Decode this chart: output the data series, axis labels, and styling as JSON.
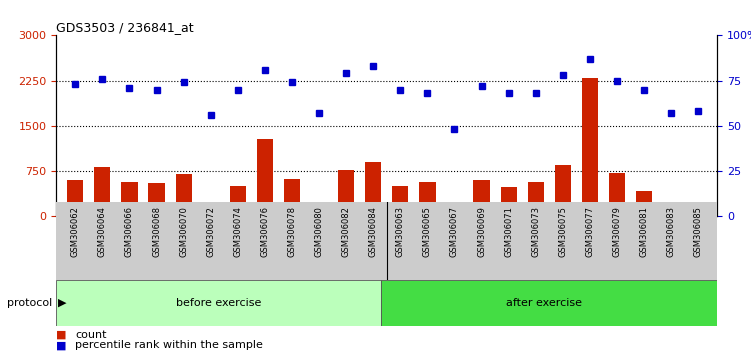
{
  "title": "GDS3503 / 236841_at",
  "samples": [
    "GSM306062",
    "GSM306064",
    "GSM306066",
    "GSM306068",
    "GSM306070",
    "GSM306072",
    "GSM306074",
    "GSM306076",
    "GSM306078",
    "GSM306080",
    "GSM306082",
    "GSM306084",
    "GSM306063",
    "GSM306065",
    "GSM306067",
    "GSM306069",
    "GSM306071",
    "GSM306073",
    "GSM306075",
    "GSM306077",
    "GSM306079",
    "GSM306081",
    "GSM306083",
    "GSM306085"
  ],
  "counts": [
    600,
    820,
    560,
    540,
    690,
    200,
    490,
    1280,
    620,
    210,
    760,
    900,
    490,
    560,
    80,
    600,
    480,
    560,
    840,
    2300,
    720,
    420,
    170,
    220
  ],
  "percentile": [
    73,
    76,
    71,
    70,
    74,
    56,
    70,
    81,
    74,
    57,
    79,
    83,
    70,
    68,
    48,
    72,
    68,
    68,
    78,
    87,
    75,
    70,
    57,
    58
  ],
  "before_count": 12,
  "after_count": 12,
  "ylim_left": [
    0,
    3000
  ],
  "ylim_right": [
    0,
    100
  ],
  "yticks_left": [
    0,
    750,
    1500,
    2250,
    3000
  ],
  "yticks_right": [
    0,
    25,
    50,
    75,
    100
  ],
  "bar_color": "#cc2200",
  "dot_color": "#0000cc",
  "before_color": "#bbffbb",
  "after_color": "#44dd44",
  "protocol_label": "protocol",
  "before_label": "before exercise",
  "after_label": "after exercise",
  "legend_count_label": "count",
  "legend_pct_label": "percentile rank within the sample",
  "xtick_bg_color": "#cccccc",
  "bg_color": "#ffffff"
}
